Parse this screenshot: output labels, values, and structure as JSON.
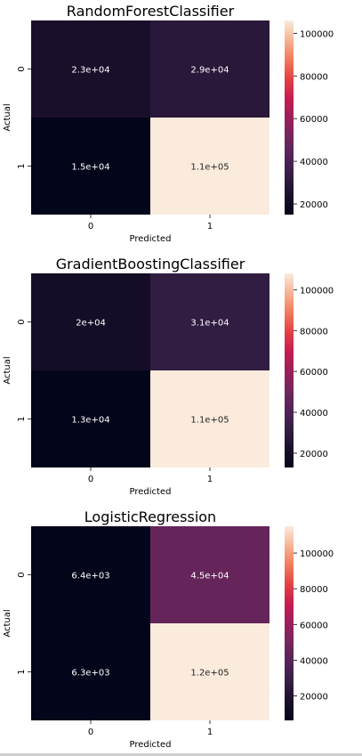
{
  "chart_data": [
    {
      "type": "heatmap",
      "title": "RandomForestClassifier",
      "xlabel": "Predicted",
      "ylabel": "Actual",
      "x_categories": [
        "0",
        "1"
      ],
      "y_categories": [
        "0",
        "1"
      ],
      "values": [
        [
          23000,
          29000
        ],
        [
          15000,
          106000
        ]
      ],
      "cell_labels": [
        [
          "2.3e+04",
          "2.9e+04"
        ],
        [
          "1.5e+04",
          "1.1e+05"
        ]
      ],
      "colorbar": {
        "vmin": 15000,
        "vmax": 106000,
        "ticks": [
          20000,
          40000,
          60000,
          80000,
          100000
        ],
        "tick_labels": [
          "20000",
          "40000",
          "60000",
          "80000",
          "100000"
        ]
      }
    },
    {
      "type": "heatmap",
      "title": "GradientBoostingClassifier",
      "xlabel": "Predicted",
      "ylabel": "Actual",
      "x_categories": [
        "0",
        "1"
      ],
      "y_categories": [
        "0",
        "1"
      ],
      "values": [
        [
          20000,
          31000
        ],
        [
          13000,
          108000
        ]
      ],
      "cell_labels": [
        [
          "2e+04",
          "3.1e+04"
        ],
        [
          "1.3e+04",
          "1.1e+05"
        ]
      ],
      "colorbar": {
        "vmin": 13000,
        "vmax": 108000,
        "ticks": [
          20000,
          40000,
          60000,
          80000,
          100000
        ],
        "tick_labels": [
          "20000",
          "40000",
          "60000",
          "80000",
          "100000"
        ]
      }
    },
    {
      "type": "heatmap",
      "title": "LogisticRegression",
      "xlabel": "Predicted",
      "ylabel": "Actual",
      "x_categories": [
        "0",
        "1"
      ],
      "y_categories": [
        "0",
        "1"
      ],
      "values": [
        [
          6400,
          45000
        ],
        [
          6300,
          115000
        ]
      ],
      "cell_labels": [
        [
          "6.4e+03",
          "4.5e+04"
        ],
        [
          "6.3e+03",
          "1.2e+05"
        ]
      ],
      "colorbar": {
        "vmin": 6300,
        "vmax": 115000,
        "ticks": [
          20000,
          40000,
          60000,
          80000,
          100000
        ],
        "tick_labels": [
          "20000",
          "40000",
          "60000",
          "80000",
          "100000"
        ]
      }
    }
  ]
}
